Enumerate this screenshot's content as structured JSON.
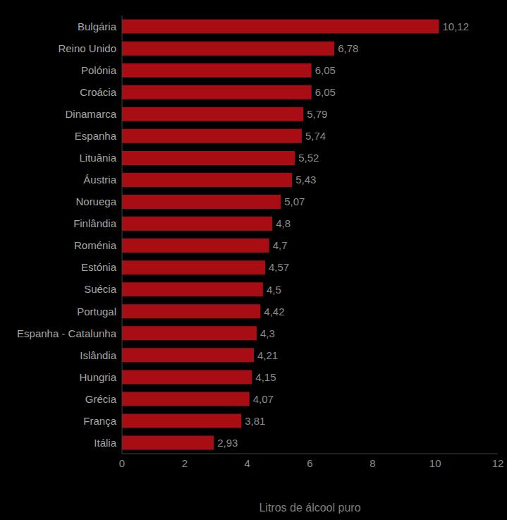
{
  "chart_data": {
    "type": "bar",
    "orientation": "horizontal",
    "x_label": "Litros de álcool puro",
    "categories": [
      "Bulgária",
      "Reino Unido",
      "Polónia",
      "Croácia",
      "Dinamarca",
      "Espanha",
      "Lituânia",
      "Áustria",
      "Noruega",
      "Finlândia",
      "Roménia",
      "Estónia",
      "Suécia",
      "Portugal",
      "Espanha - Catalunha",
      "Islândia",
      "Hungria",
      "Grécia",
      "França",
      "Itália"
    ],
    "values": [
      10.12,
      6.78,
      6.05,
      6.05,
      5.79,
      5.74,
      5.52,
      5.43,
      5.07,
      4.8,
      4.7,
      4.57,
      4.5,
      4.42,
      4.3,
      4.21,
      4.15,
      4.07,
      3.81,
      2.93
    ],
    "value_labels": [
      "10,12",
      "6,78",
      "6,05",
      "6,05",
      "5,79",
      "5,74",
      "5,52",
      "5,43",
      "5,07",
      "4,8",
      "4,7",
      "4,57",
      "4,5",
      "4,42",
      "4,3",
      "4,21",
      "4,15",
      "4,07",
      "3,81",
      "2,93"
    ],
    "color": "#a80d14",
    "xlim": [
      0,
      12
    ],
    "xticks": [
      0,
      2,
      4,
      6,
      8,
      10,
      12
    ],
    "grid": false,
    "data_labels": true
  }
}
